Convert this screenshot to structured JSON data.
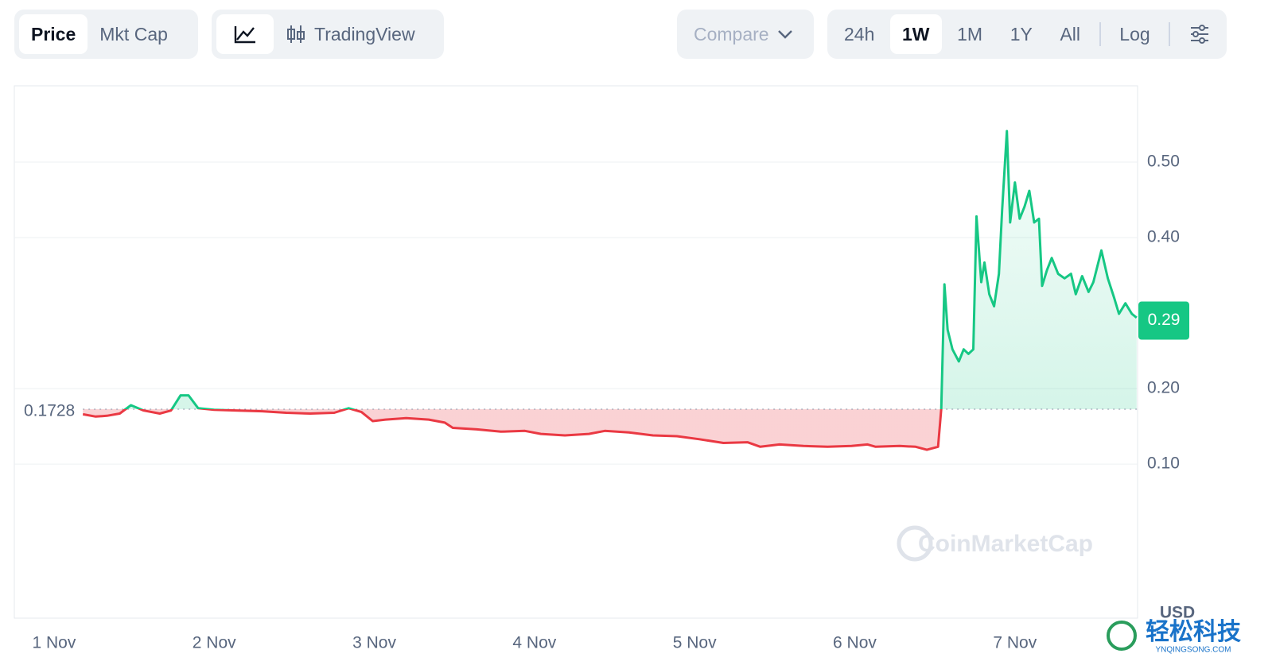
{
  "toolbar": {
    "view_tabs": [
      "Price",
      "Mkt Cap"
    ],
    "chart_style": "TradingView",
    "compare": "Compare",
    "ranges": [
      "24h",
      "1W",
      "1M",
      "1Y",
      "All"
    ],
    "scale": "Log"
  },
  "chart_data": {
    "type": "line",
    "x": [
      0.18,
      0.26,
      0.33,
      0.41,
      0.48,
      0.56,
      0.66,
      0.73,
      0.79,
      0.84,
      0.9,
      1.0,
      1.15,
      1.3,
      1.45,
      1.6,
      1.75,
      1.84,
      1.92,
      1.99,
      2.07,
      2.2,
      2.34,
      2.44,
      2.49,
      2.64,
      2.79,
      2.94,
      3.04,
      3.19,
      3.34,
      3.44,
      3.59,
      3.74,
      3.89,
      4.03,
      4.18,
      4.33,
      4.41,
      4.53,
      4.68,
      4.83,
      4.98,
      5.08,
      5.13,
      5.28,
      5.38,
      5.45,
      5.52,
      5.54,
      5.56,
      5.58,
      5.61,
      5.65,
      5.68,
      5.71,
      5.74,
      5.76,
      5.79,
      5.81,
      5.84,
      5.87,
      5.9,
      5.92,
      5.95,
      5.97,
      6.0,
      6.03,
      6.06,
      6.09,
      6.12,
      6.15,
      6.17,
      6.2,
      6.23,
      6.27,
      6.31,
      6.35,
      6.38,
      6.42,
      6.46,
      6.49,
      6.54,
      6.58,
      6.62,
      6.65,
      6.69,
      6.73,
      6.76
    ],
    "series": [
      {
        "name": "Price",
        "values": [
          0.166,
          0.163,
          0.164,
          0.167,
          0.178,
          0.171,
          0.167,
          0.171,
          0.191,
          0.191,
          0.174,
          0.172,
          0.171,
          0.17,
          0.168,
          0.167,
          0.168,
          0.174,
          0.169,
          0.157,
          0.159,
          0.161,
          0.159,
          0.155,
          0.148,
          0.146,
          0.143,
          0.144,
          0.14,
          0.138,
          0.14,
          0.144,
          0.142,
          0.138,
          0.137,
          0.133,
          0.128,
          0.129,
          0.123,
          0.126,
          0.124,
          0.123,
          0.124,
          0.126,
          0.123,
          0.124,
          0.123,
          0.119,
          0.123,
          0.173,
          0.338,
          0.278,
          0.252,
          0.236,
          0.252,
          0.246,
          0.252,
          0.428,
          0.341,
          0.367,
          0.325,
          0.309,
          0.352,
          0.436,
          0.541,
          0.42,
          0.473,
          0.425,
          0.441,
          0.462,
          0.42,
          0.425,
          0.336,
          0.357,
          0.373,
          0.352,
          0.346,
          0.352,
          0.325,
          0.349,
          0.328,
          0.341,
          0.383,
          0.346,
          0.32,
          0.299,
          0.313,
          0.299,
          0.294
        ]
      }
    ],
    "up_color": "#16c784",
    "down_color": "#ea3943",
    "baseline": 0.1728,
    "current_price": 0.29,
    "xlim": [
      -0.248,
      6.766
    ],
    "xticks": [
      {
        "value": 0,
        "label": "1 Nov"
      },
      {
        "value": 1,
        "label": "2 Nov"
      },
      {
        "value": 2,
        "label": "3 Nov"
      },
      {
        "value": 3,
        "label": "4 Nov"
      },
      {
        "value": 4,
        "label": "5 Nov"
      },
      {
        "value": 5,
        "label": "6 Nov"
      },
      {
        "value": 6,
        "label": "7 Nov"
      }
    ],
    "ylim": [
      -0.104,
      0.601
    ],
    "yticks": [
      {
        "value": 0.1,
        "label": "0.10"
      },
      {
        "value": 0.2,
        "label": "0.20"
      },
      {
        "value": 0.4,
        "label": "0.40"
      },
      {
        "value": 0.5,
        "label": "0.50"
      }
    ],
    "grid": true,
    "watermark": "CoinMarketCap",
    "currency": "USD"
  },
  "site_badge": {
    "name": "轻松科技",
    "url": "YNQINGSONG.COM"
  }
}
